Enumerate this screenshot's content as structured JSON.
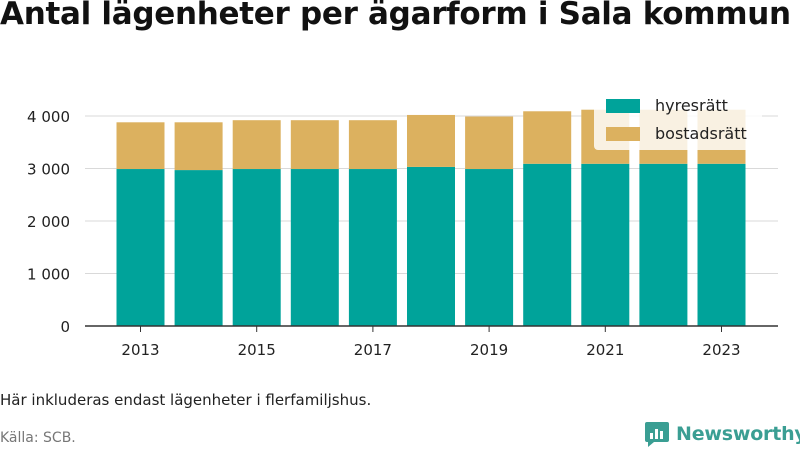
{
  "title": "Antal lägenheter per ägarform i Sala kommun",
  "note": "Här inkluderas endast lägenheter i flerfamiljshus.",
  "source": "Källa: SCB.",
  "brand": {
    "name": "Newsworthy",
    "icon": "newsworthy-logo-icon",
    "color": "#3a9e93"
  },
  "chart_data": {
    "type": "bar",
    "stacked": true,
    "categories": [
      "2013",
      "2014",
      "2015",
      "2016",
      "2017",
      "2018",
      "2019",
      "2020",
      "2021",
      "2022",
      "2023"
    ],
    "series": [
      {
        "name": "hyresrätt",
        "color": "#00a39a",
        "values": [
          2990,
          2970,
          2990,
          2990,
          2990,
          3030,
          2990,
          3090,
          3090,
          3090,
          3090
        ]
      },
      {
        "name": "bostadsrätt",
        "color": "#dcb15f",
        "values": [
          890,
          910,
          930,
          930,
          930,
          990,
          1000,
          1000,
          1030,
          1030,
          1030
        ]
      }
    ],
    "ylim": [
      0,
      4000
    ],
    "yticks": [
      0,
      1000,
      2000,
      3000,
      4000
    ],
    "ytick_labels": [
      "0",
      "1 000",
      "2 000",
      "3 000",
      "4 000"
    ],
    "xtick_labels": [
      "2013",
      "2015",
      "2017",
      "2019",
      "2021",
      "2023"
    ],
    "legend": "top-right",
    "grid": "horizontal"
  }
}
